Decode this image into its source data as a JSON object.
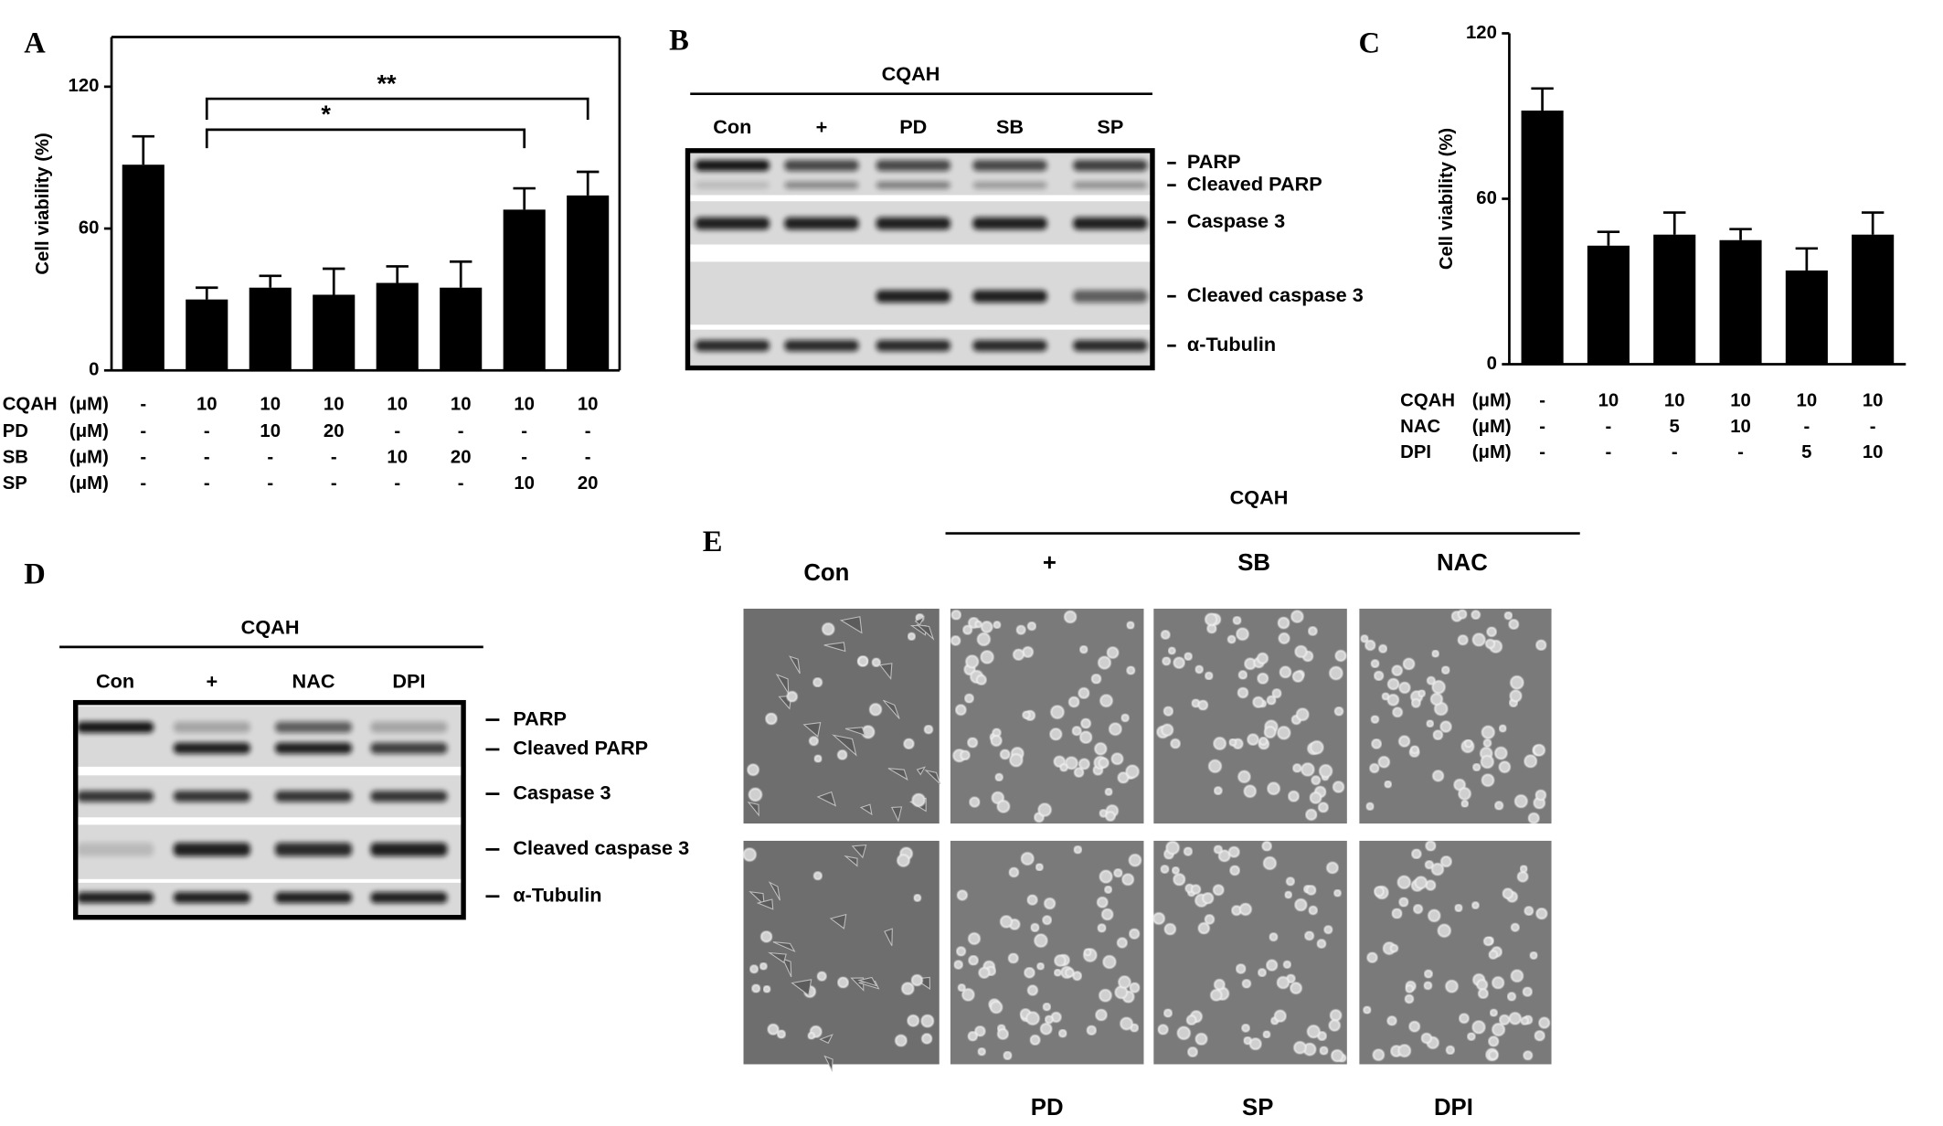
{
  "chart_data": [
    {
      "type": "bar",
      "panel": "A",
      "ylabel": "Cell viability (%)",
      "categories": [
        null,
        null,
        null,
        null,
        null,
        null,
        null,
        null
      ],
      "values": [
        87,
        30,
        35,
        32,
        37,
        35,
        68,
        74
      ],
      "errors": [
        12,
        5,
        5,
        11,
        7,
        11,
        9,
        10
      ],
      "color": "#000000",
      "ylim": [
        0,
        141
      ],
      "yticks": [
        0,
        60,
        120
      ],
      "frame": "box",
      "treatments": [
        {
          "name": "CQAH",
          "unit": "(μM)",
          "values": [
            "-",
            "10",
            "10",
            "10",
            "10",
            "10",
            "10",
            "10"
          ]
        },
        {
          "name": "PD",
          "unit": "(μM)",
          "values": [
            "-",
            "-",
            "10",
            "20",
            "-",
            "-",
            "-",
            "-"
          ]
        },
        {
          "name": "SB",
          "unit": "(μM)",
          "values": [
            "-",
            "-",
            "-",
            "-",
            "10",
            "20",
            "-",
            "-"
          ]
        },
        {
          "name": "SP",
          "unit": "(μM)",
          "values": [
            "-",
            "-",
            "-",
            "-",
            "-",
            "-",
            "10",
            "20"
          ]
        }
      ],
      "significance": [
        "*",
        "**"
      ]
    },
    {
      "type": "bar",
      "panel": "C",
      "ylabel": "Cell viability (%)",
      "categories": [
        null,
        null,
        null,
        null,
        null,
        null
      ],
      "values": [
        92,
        43,
        47,
        45,
        34,
        47
      ],
      "errors": [
        8,
        5,
        8,
        4,
        8,
        8
      ],
      "color": "#000000",
      "ylim": [
        0,
        120
      ],
      "yticks": [
        0,
        60,
        120
      ],
      "frame": "axes",
      "treatments": [
        {
          "name": "CQAH",
          "unit": "(μM)",
          "values": [
            "-",
            "10",
            "10",
            "10",
            "10",
            "10"
          ]
        },
        {
          "name": "NAC",
          "unit": "(μM)",
          "values": [
            "-",
            "-",
            "5",
            "10",
            "-",
            "-"
          ]
        },
        {
          "name": "DPI",
          "unit": "(μM)",
          "values": [
            "-",
            "-",
            "-",
            "-",
            "5",
            "10"
          ]
        }
      ]
    }
  ],
  "blots": [
    {
      "panel": "B",
      "group_label": "CQAH",
      "lanes": [
        "Con",
        "+",
        "PD",
        "SB",
        "SP"
      ],
      "bands": [
        "PARP",
        "Cleaved PARP",
        "Caspase 3",
        "Cleaved caspase 3",
        "α-Tubulin"
      ]
    },
    {
      "panel": "D",
      "group_label": "CQAH",
      "lanes": [
        "Con",
        "+",
        "NAC",
        "DPI"
      ],
      "bands": [
        "PARP",
        "Cleaved PARP",
        "Caspase 3",
        "Cleaved caspase 3",
        "α-Tubulin"
      ]
    }
  ],
  "micrographs": {
    "panel": "E",
    "group_label": "CQAH",
    "top_labels": [
      "Con",
      "+",
      "SB",
      "NAC"
    ],
    "bottom_labels": [
      "PD",
      "SP",
      "DPI"
    ]
  }
}
